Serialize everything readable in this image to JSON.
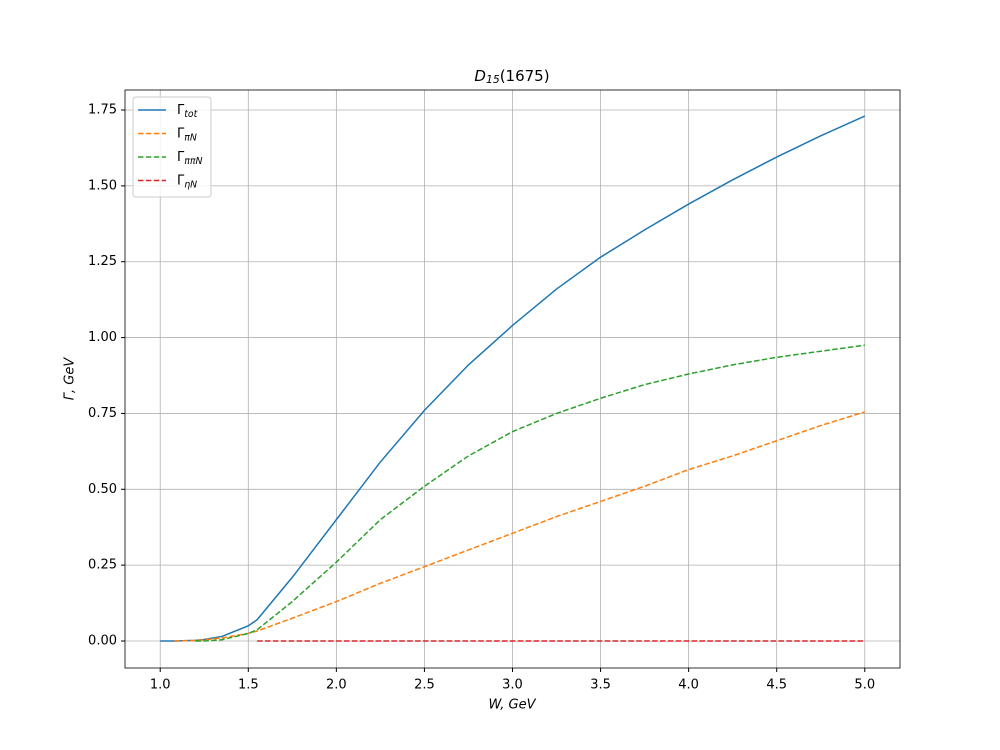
{
  "chart_data": {
    "type": "line",
    "title": "D15(1675)",
    "x_label": "W, GeV",
    "y_label": "Γ, GeV",
    "x": [
      1.0,
      1.08,
      1.2,
      1.25,
      1.35,
      1.5,
      1.55,
      1.75,
      2.0,
      2.25,
      2.5,
      2.75,
      3.0,
      3.25,
      3.5,
      3.75,
      4.0,
      4.25,
      4.5,
      4.75,
      5.0
    ],
    "series": [
      {
        "name": "Γtot",
        "color": "#1f77b4",
        "dashed": false,
        "values": [
          0,
          0,
          0.002,
          0.005,
          0.015,
          0.05,
          0.07,
          0.21,
          0.4,
          0.59,
          0.76,
          0.91,
          1.04,
          1.16,
          1.265,
          1.355,
          1.44,
          1.52,
          1.595,
          1.665,
          1.73
        ]
      },
      {
        "name": "ΓπN",
        "color": "#ff7f0e",
        "dashed": true,
        "values": [
          null,
          0,
          0.002,
          0.004,
          0.01,
          0.025,
          0.033,
          0.075,
          0.13,
          0.19,
          0.245,
          0.3,
          0.355,
          0.41,
          0.46,
          0.51,
          0.565,
          0.61,
          0.66,
          0.71,
          0.755
        ]
      },
      {
        "name": "ΓππN",
        "color": "#2ca02c",
        "dashed": true,
        "values": [
          null,
          null,
          0,
          0,
          0.004,
          0.025,
          0.037,
          0.13,
          0.26,
          0.4,
          0.51,
          0.61,
          0.69,
          0.75,
          0.8,
          0.845,
          0.88,
          0.91,
          0.935,
          0.955,
          0.975
        ]
      },
      {
        "name": "ΓηN",
        "color": "#d62728",
        "dashed": true,
        "values": [
          null,
          null,
          null,
          null,
          null,
          null,
          0,
          0,
          0,
          0,
          0,
          0,
          0,
          0,
          0,
          0,
          0,
          0,
          0,
          0,
          0
        ]
      }
    ],
    "xlim": [
      0.8,
      5.2
    ],
    "ylim": [
      -0.089,
      1.816
    ],
    "xticks": [
      {
        "value": 1,
        "label": "1.0"
      },
      1.5,
      {
        "value": 2,
        "label": "2.0"
      },
      2.5,
      {
        "value": 3,
        "label": "3.0"
      },
      3.5,
      {
        "value": 4,
        "label": "4.0"
      },
      4.5,
      {
        "value": 5,
        "label": "5.0"
      }
    ],
    "yticks": [
      {
        "value": 0,
        "label": "0.00"
      },
      {
        "value": 0.25,
        "label": "0.25"
      },
      {
        "value": 0.5,
        "label": "0.50"
      },
      {
        "value": 0.75,
        "label": "0.75"
      },
      {
        "value": 1,
        "label": "1.00"
      },
      {
        "value": 1.25,
        "label": "1.25"
      },
      {
        "value": 1.5,
        "label": "1.50"
      },
      {
        "value": 1.75,
        "label": "1.75"
      }
    ],
    "grid": true,
    "legend": "upper left"
  }
}
